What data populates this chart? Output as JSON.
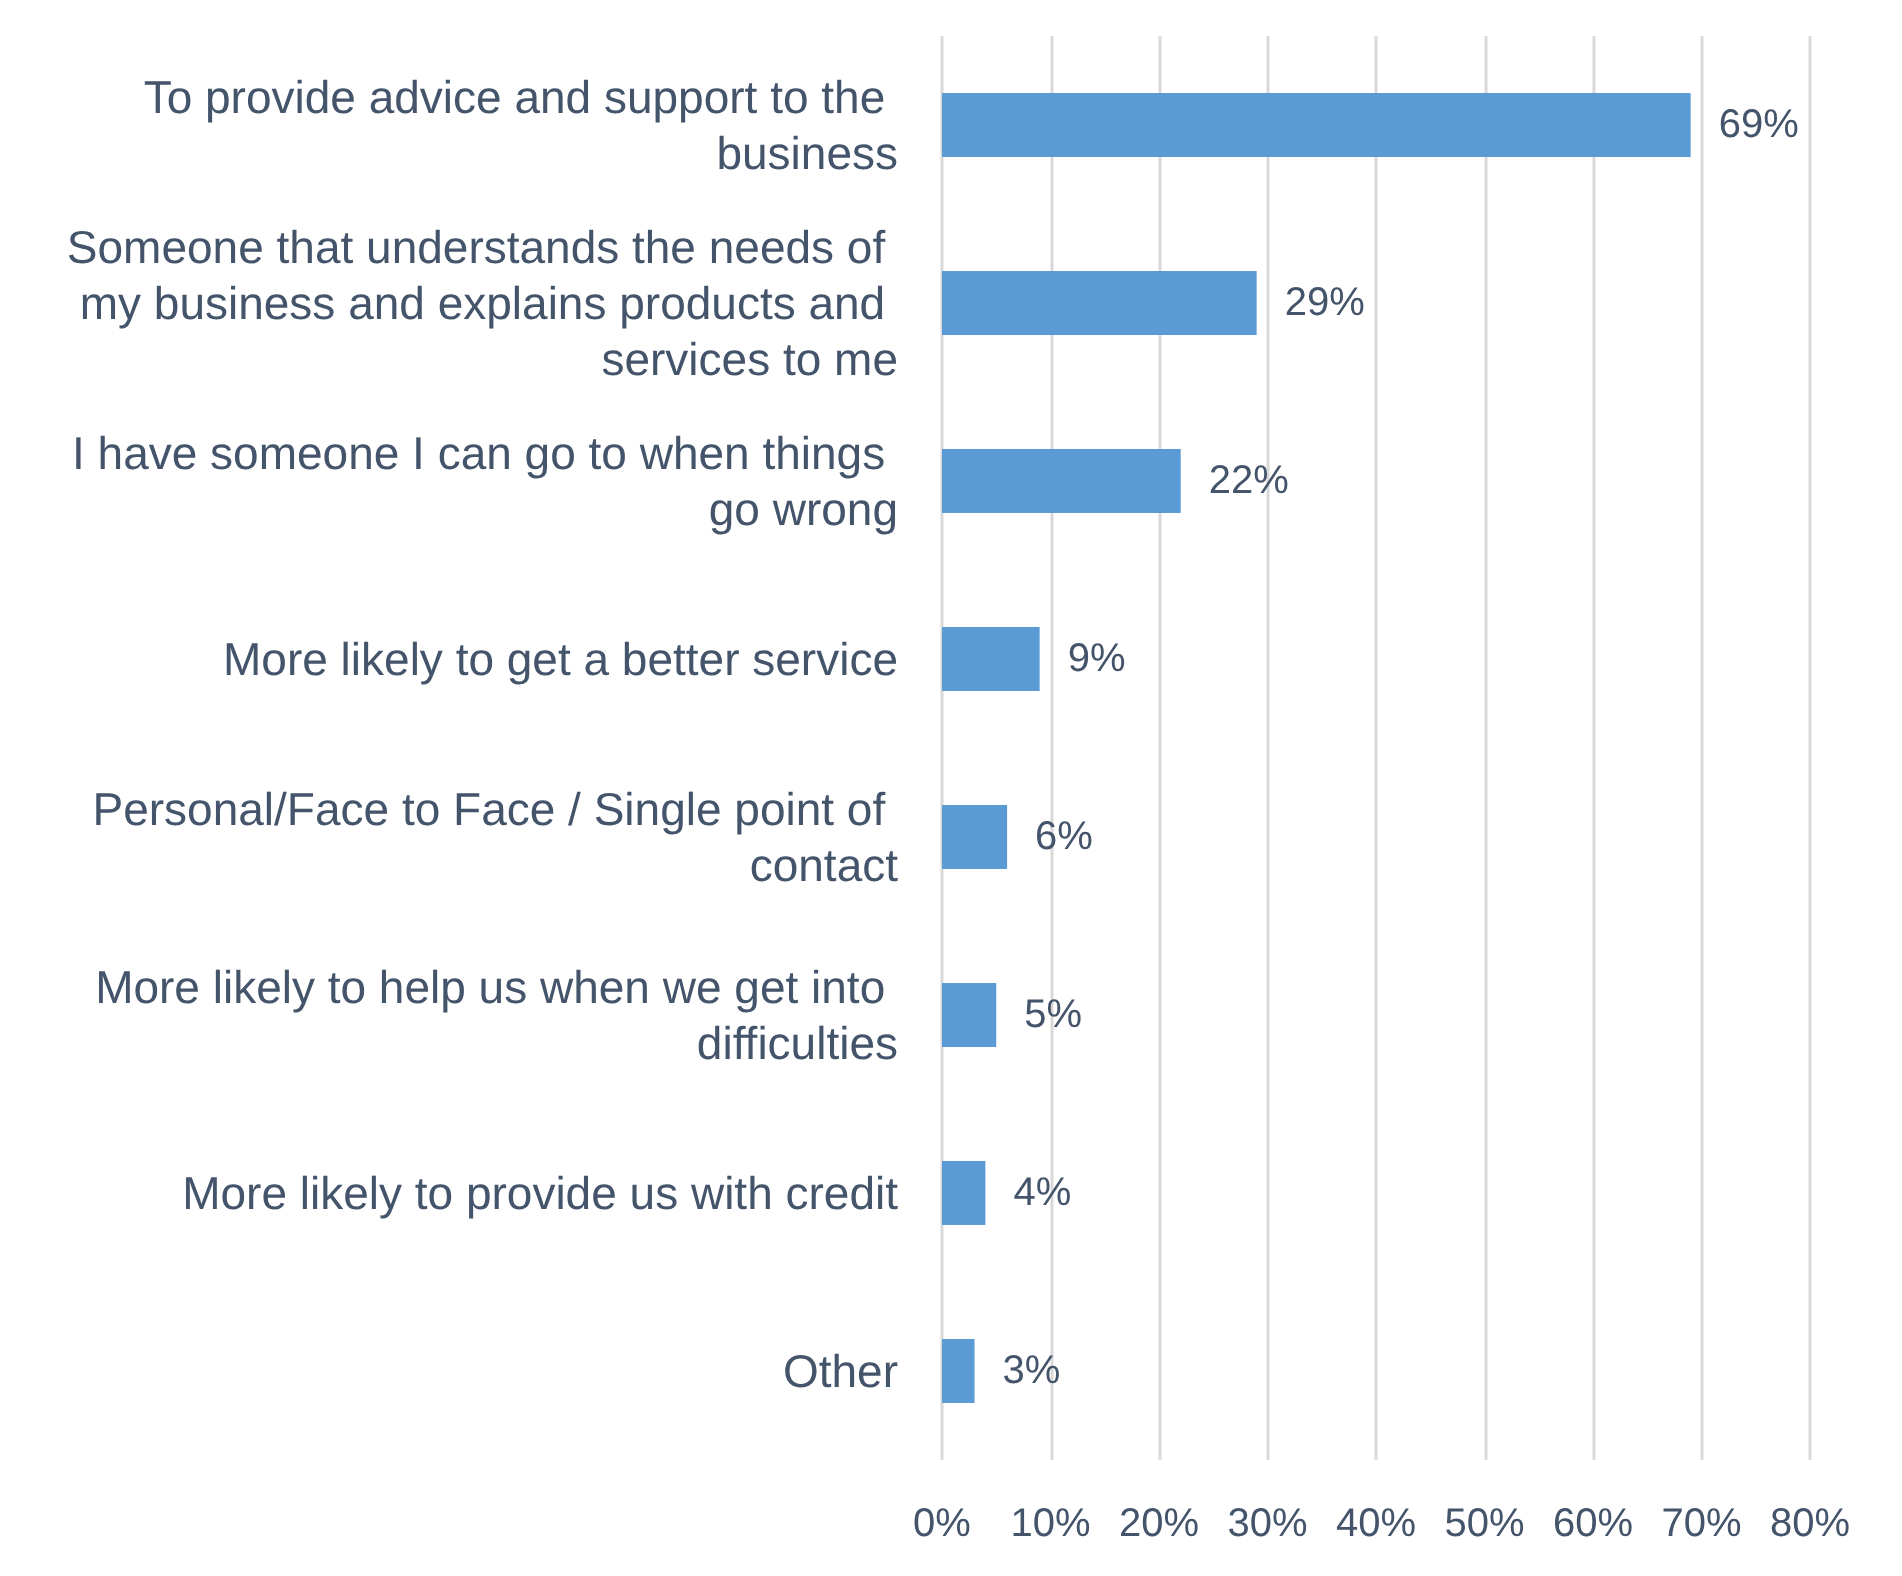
{
  "chart_data": {
    "type": "bar",
    "orientation": "horizontal",
    "categories": [
      "To provide advice and support to the business",
      "Someone that understands the needs of my business and explains products and services to me",
      "I have someone I can go to when things go wrong",
      "More likely to get a better service",
      "Personal/Face to Face / Single point of contact",
      "More likely to help us when we get into difficulties",
      "More likely to provide us with credit",
      "Other"
    ],
    "values": [
      69,
      29,
      22,
      9,
      6,
      5,
      4,
      3
    ],
    "value_labels": [
      "69%",
      "29%",
      "22%",
      "9%",
      "6%",
      "5%",
      "4%",
      "3%"
    ],
    "color": "#5b9bd5",
    "xlim": [
      0,
      80
    ],
    "xticks": [
      {
        "value": 0,
        "label": "0%"
      },
      {
        "value": 10,
        "label": "10%"
      },
      {
        "value": 20,
        "label": "20%"
      },
      {
        "value": 30,
        "label": "30%"
      },
      {
        "value": 40,
        "label": "40%"
      },
      {
        "value": 50,
        "label": "50%"
      },
      {
        "value": 60,
        "label": "60%"
      },
      {
        "value": 70,
        "label": "70%"
      },
      {
        "value": 80,
        "label": "80%"
      }
    ],
    "grid": "x"
  }
}
